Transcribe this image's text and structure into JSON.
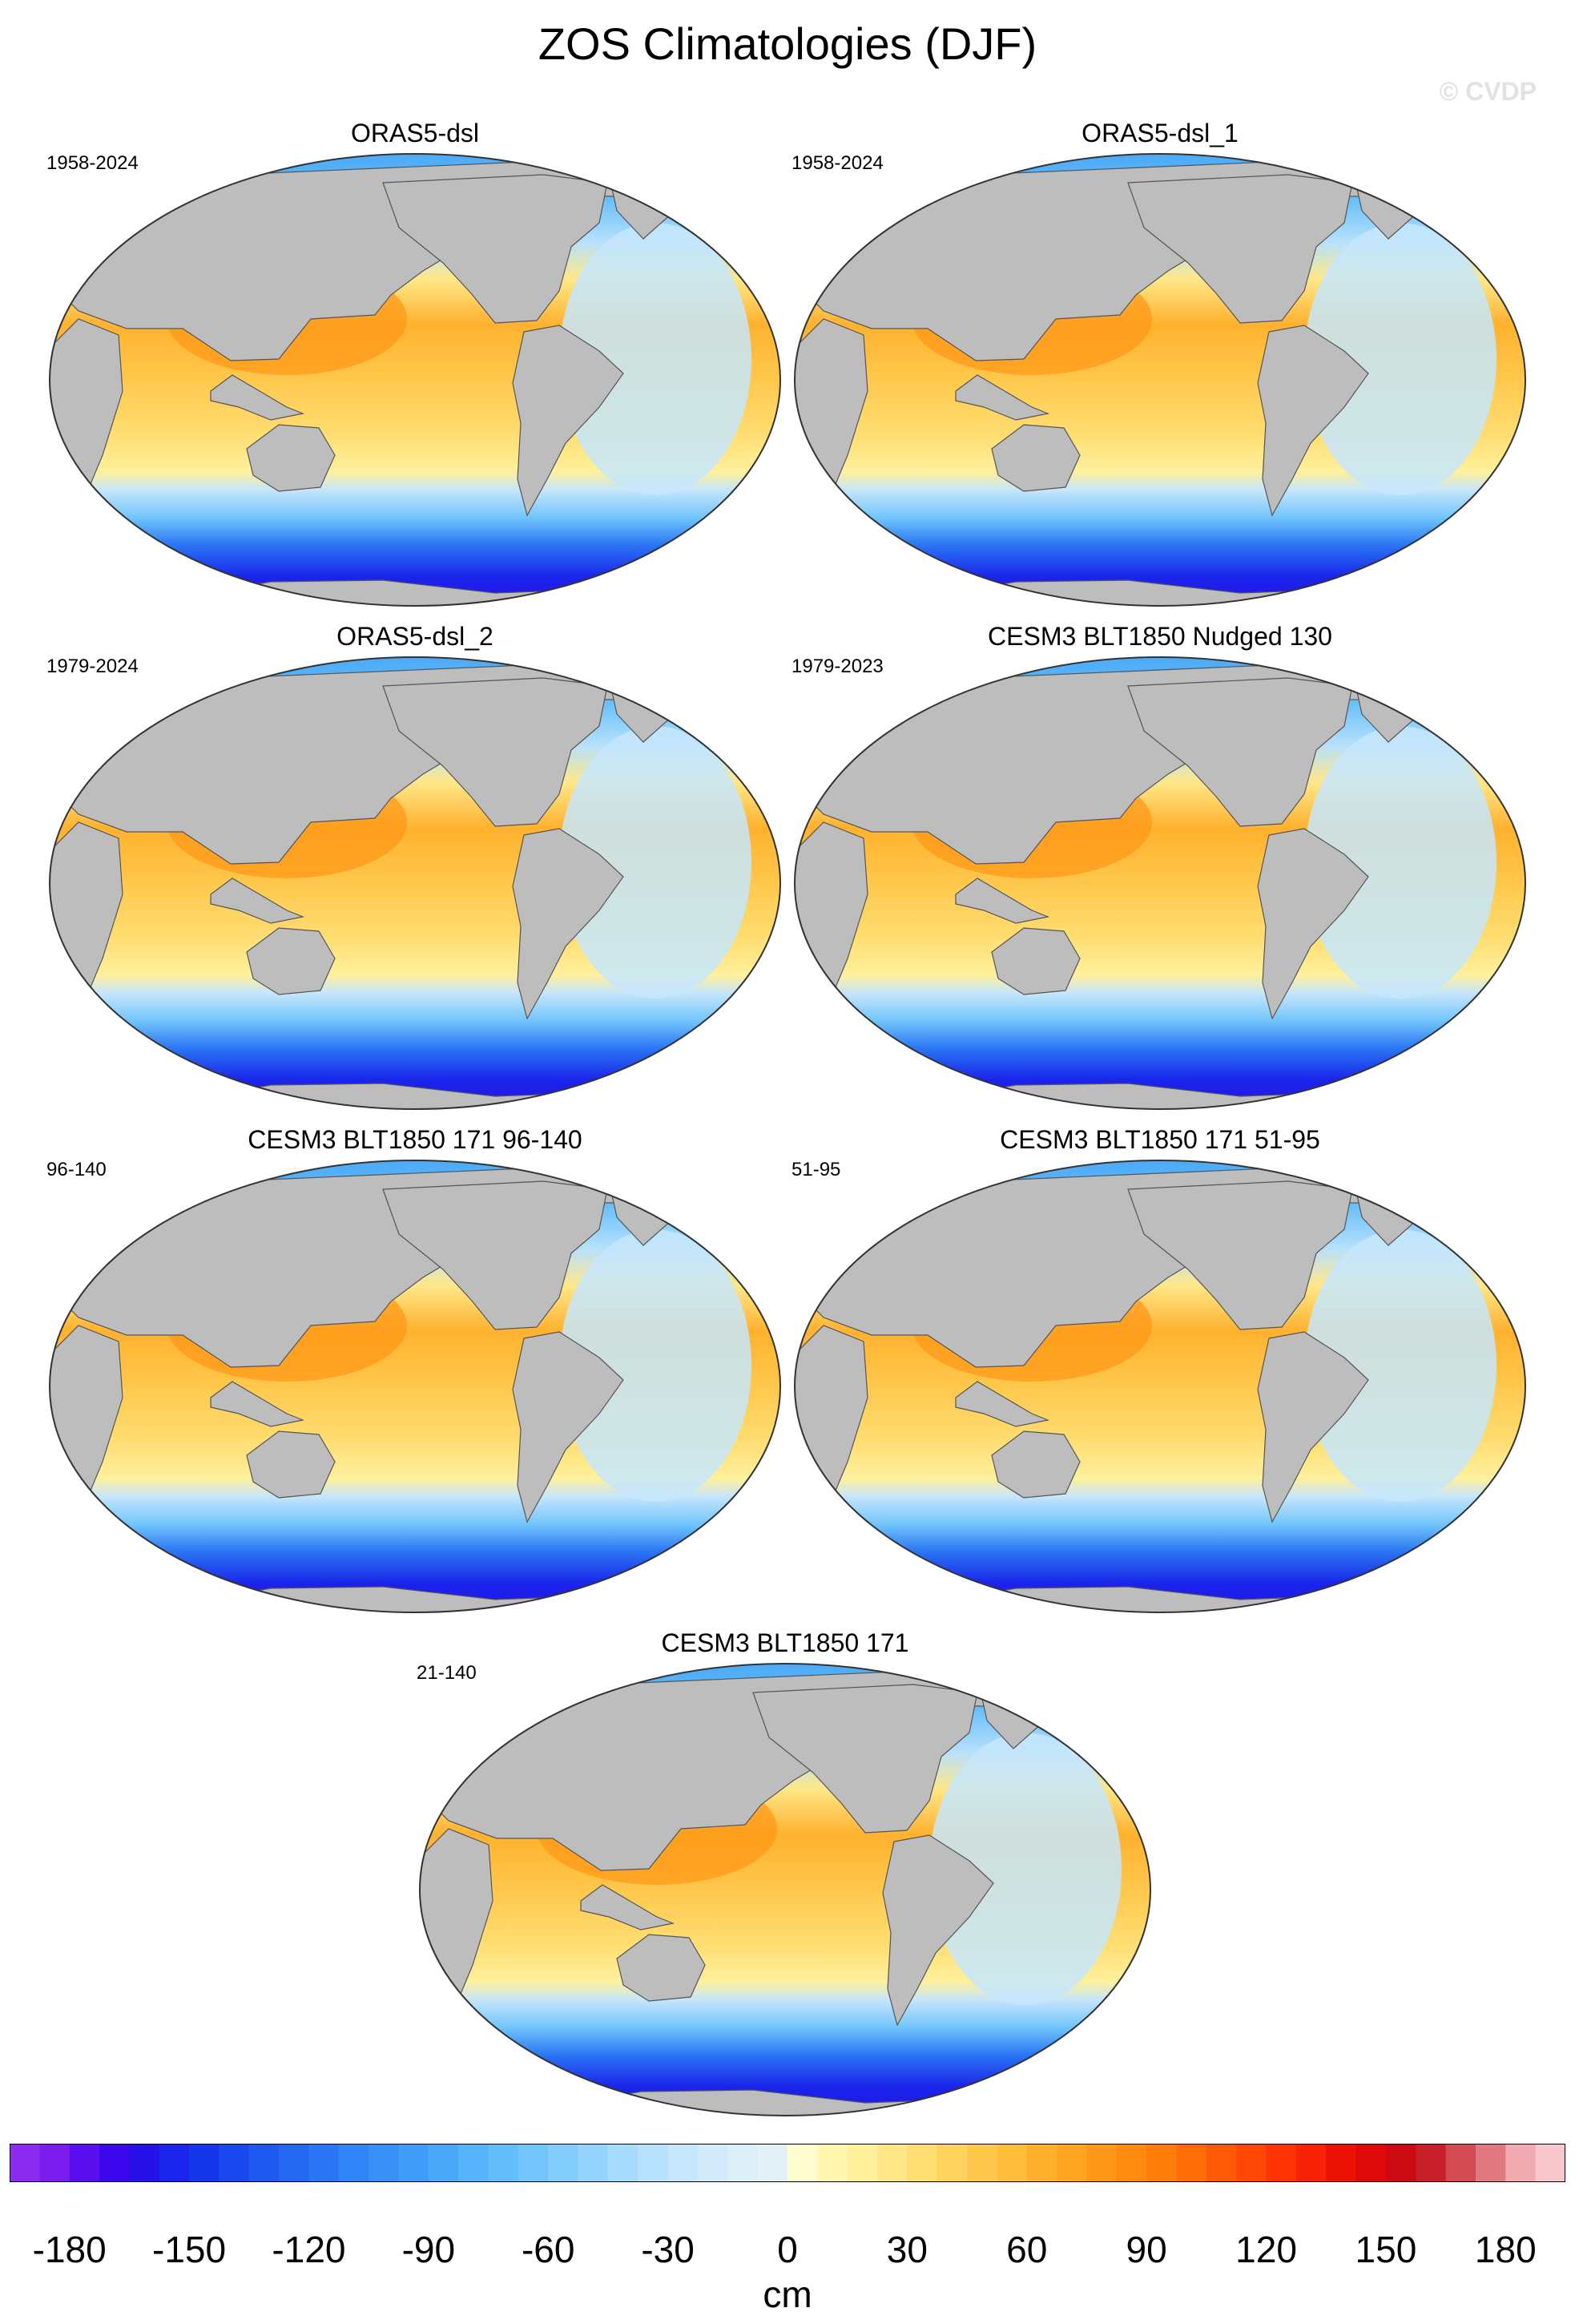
{
  "title": "ZOS Climatologies (DJF)",
  "watermark": "© CVDP",
  "panels": [
    {
      "title": "ORAS5-dsl",
      "period": "1958-2024"
    },
    {
      "title": "ORAS5-dsl_1",
      "period": "1958-2024"
    },
    {
      "title": "ORAS5-dsl_2",
      "period": "1979-2024"
    },
    {
      "title": "CESM3 BLT1850 Nudged 130",
      "period": "1979-2023"
    },
    {
      "title": "CESM3 BLT1850 171 96-140",
      "period": "96-140"
    },
    {
      "title": "CESM3 BLT1850 171 51-95",
      "period": "51-95"
    },
    {
      "title": "CESM3 BLT1850 171",
      "period": "21-140"
    }
  ],
  "colorbar": {
    "ticks": [
      "-180",
      "-150",
      "-120",
      "-90",
      "-60",
      "-30",
      "0",
      "30",
      "60",
      "90",
      "120",
      "150",
      "180"
    ],
    "unit": "cm",
    "min": -195,
    "max": 195,
    "step": 7.5,
    "colors": [
      "#8c2cf0",
      "#7a1ef0",
      "#5a10ee",
      "#3a08ea",
      "#2612e8",
      "#1a24ea",
      "#1636ec",
      "#1848ee",
      "#1e5af0",
      "#2468f2",
      "#2a76f4",
      "#3184f5",
      "#3890f6",
      "#409cf7",
      "#4aa8f8",
      "#56b3f9",
      "#63bdfa",
      "#72c5fb",
      "#82cdfb",
      "#94d4fc",
      "#a6dbfc",
      "#b7e1fc",
      "#c6e6fb",
      "#d3eafa",
      "#dceef8",
      "#e2f1f6",
      "#fdfdd0",
      "#fff7b0",
      "#fff09c",
      "#ffe788",
      "#ffdd72",
      "#ffd35e",
      "#ffc84c",
      "#ffbd3c",
      "#ffb12e",
      "#ffa522",
      "#ff9818",
      "#ff8b10",
      "#ff7c0a",
      "#ff6c08",
      "#ff5a08",
      "#ff4808",
      "#ff3406",
      "#f82206",
      "#ec1206",
      "#de0a0a",
      "#cc0a12",
      "#c8202a",
      "#d24a52",
      "#e07a80",
      "#f0aab0",
      "#f8c8cc"
    ]
  }
}
